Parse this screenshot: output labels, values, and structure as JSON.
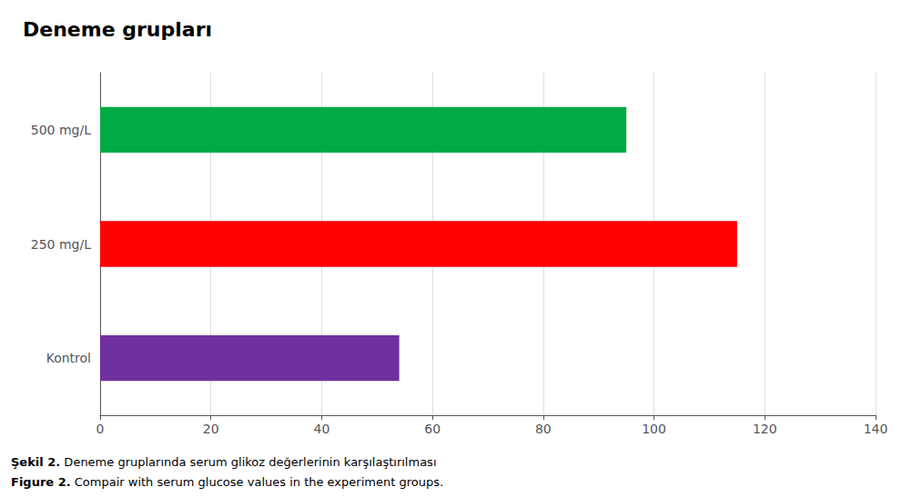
{
  "chart_data": {
    "type": "bar",
    "orientation": "horizontal",
    "title": "Deneme grupları",
    "categories": [
      "Kontrol",
      "250 mg/L",
      "500 mg/L"
    ],
    "values": [
      54,
      115,
      95
    ],
    "colors": [
      "#7030a0",
      "#ff0000",
      "#00aa44"
    ],
    "xlim": [
      0,
      140
    ],
    "xticks": [
      0,
      20,
      40,
      60,
      80,
      100,
      120,
      140
    ],
    "grid": true,
    "annotations": [
      "Şekil 2.",
      "Deneme gruplarında serum glikoz değerlerinin karşılaştırılması",
      "Figure 2.",
      "Compair with serum glucose values in the experiment groups."
    ]
  }
}
